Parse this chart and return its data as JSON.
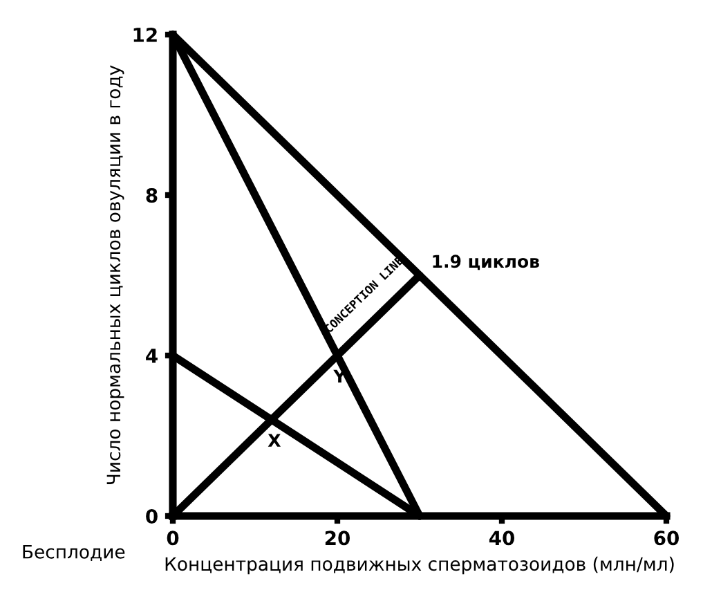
{
  "chart_data": {
    "type": "line",
    "xlabel": "Концентрация подвижных сперматозоидов (млн/мл)",
    "ylabel": "Число нормальных циклов овуляции в году",
    "series": [
      {
        "color": "#000000",
        "x": [
          0,
          60
        ],
        "values": [
          12,
          0
        ]
      },
      {
        "color": "#000000",
        "x": [
          0,
          30
        ],
        "values": [
          12,
          0
        ]
      },
      {
        "color": "#000000",
        "x": [
          0,
          30
        ],
        "values": [
          4,
          0
        ]
      },
      {
        "color": "#000000",
        "x": [
          0,
          30
        ],
        "values": [
          0,
          6
        ]
      }
    ],
    "xlim": [
      0,
      60
    ],
    "ylim": [
      0,
      12
    ],
    "xticks": [
      0,
      20,
      40,
      60
    ],
    "yticks": [
      0,
      4,
      8,
      12
    ],
    "grid": false,
    "legend": false,
    "marker": "none",
    "line_style": "solid",
    "annotations": [
      {
        "text": "1.9 циклов",
        "x": 30,
        "y": 6
      },
      {
        "text": "X",
        "x": 12,
        "y": 2.4
      },
      {
        "text": "Y",
        "x": 20,
        "y": 4
      },
      "CONCEPTION LINE",
      "Бесплодие"
    ]
  }
}
